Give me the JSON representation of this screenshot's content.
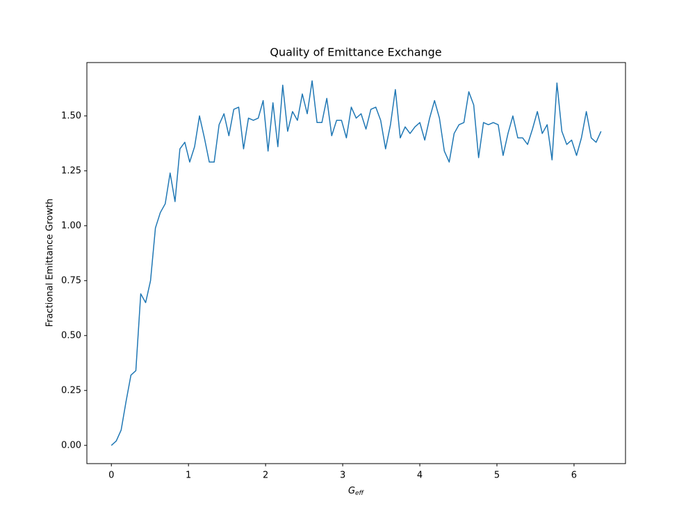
{
  "chart_data": {
    "type": "line",
    "title": "Quality of Emittance Exchange",
    "xlabel": {
      "main": "G",
      "sub": "eff"
    },
    "ylabel": "Fractional Emittance Growth",
    "x": [
      0,
      0.0635,
      0.127,
      0.1905,
      0.254,
      0.3175,
      0.381,
      0.4445,
      0.508,
      0.5715,
      0.635,
      0.6985,
      0.762,
      0.8255,
      0.889,
      0.9525,
      1.016,
      1.0795,
      1.143,
      1.2065,
      1.27,
      1.3335,
      1.397,
      1.4605,
      1.524,
      1.5875,
      1.651,
      1.7145,
      1.778,
      1.8415,
      1.905,
      1.9685,
      2.032,
      2.0955,
      2.159,
      2.2225,
      2.286,
      2.3495,
      2.413,
      2.4765,
      2.54,
      2.6035,
      2.667,
      2.7305,
      2.794,
      2.8575,
      2.921,
      2.9845,
      3.048,
      3.1115,
      3.175,
      3.2385,
      3.302,
      3.3655,
      3.429,
      3.4925,
      3.556,
      3.6195,
      3.683,
      3.7465,
      3.81,
      3.8735,
      3.937,
      4.0005,
      4.064,
      4.1275,
      4.191,
      4.2545,
      4.318,
      4.3815,
      4.445,
      4.5085,
      4.572,
      4.6355,
      4.699,
      4.7625,
      4.826,
      4.8895,
      4.953,
      5.0165,
      5.08,
      5.1435,
      5.207,
      5.2705,
      5.334,
      5.3975,
      5.461,
      5.5245,
      5.588,
      5.6515,
      5.715,
      5.7785,
      5.842,
      5.9055,
      5.969,
      6.0325,
      6.096,
      6.1595,
      6.223,
      6.2865,
      6.35
    ],
    "series": [
      {
        "color": "#1f77b4",
        "values": [
          0.0,
          0.02,
          0.07,
          0.2,
          0.32,
          0.34,
          0.69,
          0.65,
          0.75,
          0.99,
          1.06,
          1.1,
          1.24,
          1.11,
          1.35,
          1.38,
          1.29,
          1.36,
          1.5,
          1.4,
          1.29,
          1.29,
          1.46,
          1.51,
          1.41,
          1.53,
          1.54,
          1.35,
          1.49,
          1.48,
          1.49,
          1.57,
          1.34,
          1.56,
          1.36,
          1.64,
          1.43,
          1.52,
          1.48,
          1.6,
          1.51,
          1.66,
          1.47,
          1.47,
          1.58,
          1.41,
          1.48,
          1.48,
          1.4,
          1.54,
          1.49,
          1.51,
          1.44,
          1.53,
          1.54,
          1.48,
          1.35,
          1.46,
          1.62,
          1.4,
          1.45,
          1.42,
          1.45,
          1.47,
          1.39,
          1.49,
          1.57,
          1.49,
          1.34,
          1.29,
          1.42,
          1.46,
          1.47,
          1.61,
          1.55,
          1.31,
          1.47,
          1.46,
          1.47,
          1.46,
          1.32,
          1.42,
          1.5,
          1.4,
          1.4,
          1.37,
          1.44,
          1.52,
          1.42,
          1.46,
          1.3,
          1.65,
          1.43,
          1.37,
          1.39,
          1.32,
          1.4,
          1.52,
          1.4,
          1.38,
          1.43
        ]
      }
    ],
    "xlim": [
      -0.3175,
      6.6675
    ],
    "ylim": [
      -0.083,
      1.743
    ],
    "xticks": [
      0,
      1,
      2,
      3,
      4,
      5,
      6
    ],
    "yticks": [
      {
        "value": 0,
        "label": "0.00"
      },
      {
        "value": 0.25,
        "label": "0.25"
      },
      {
        "value": 0.5,
        "label": "0.50"
      },
      {
        "value": 0.75,
        "label": "0.75"
      },
      {
        "value": 1,
        "label": "1.00"
      },
      {
        "value": 1.25,
        "label": "1.25"
      },
      {
        "value": 1.5,
        "label": "1.50"
      }
    ],
    "grid": false
  }
}
